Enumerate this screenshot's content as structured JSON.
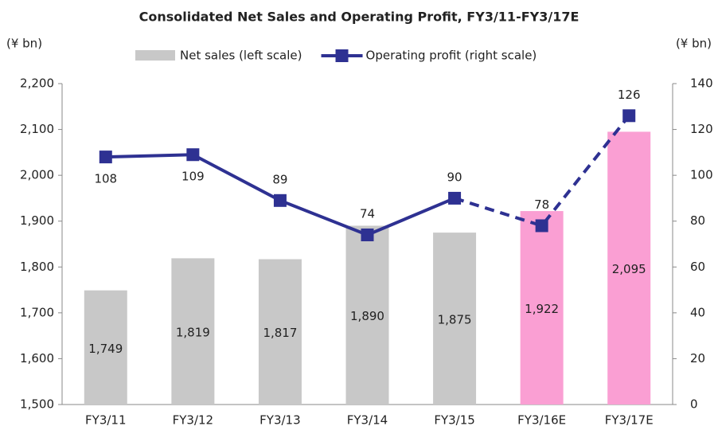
{
  "chart_data": {
    "type": "bar_line",
    "title": "Consolidated Net Sales and Operating Profit, FY3/11-FY3/17E",
    "y_label": "(¥ bn)",
    "y2_label": "(¥ bn)",
    "categories": [
      "FY3/11",
      "FY3/12",
      "FY3/13",
      "FY3/14",
      "FY3/15",
      "FY3/16E",
      "FY3/17E"
    ],
    "series": [
      {
        "name": "Net sales (left scale)",
        "type": "bar",
        "color": "#c8c8c8",
        "colors": [
          "#c8c8c8",
          "#c8c8c8",
          "#c8c8c8",
          "#c8c8c8",
          "#c8c8c8",
          "#fa9fd3",
          "#fa9fd3"
        ],
        "values": [
          1749,
          1819,
          1817,
          1890,
          1875,
          1922,
          2095
        ],
        "value_labels": [
          "1,749",
          "1,819",
          "1,817",
          "1,890",
          "1,875",
          "1,922",
          "2,095"
        ]
      },
      {
        "name": "Operating profit (right scale)",
        "type": "line",
        "axis": "y2",
        "color": "#2e3192",
        "dashed_from": 4,
        "values": [
          108,
          109,
          89,
          74,
          90,
          78,
          126
        ]
      }
    ],
    "ylim": [
      1500,
      2200
    ],
    "yticks": [
      {
        "value": 1500,
        "label": "1,500"
      },
      {
        "value": 1600,
        "label": "1,600"
      },
      {
        "value": 1700,
        "label": "1,700"
      },
      {
        "value": 1800,
        "label": "1,800"
      },
      {
        "value": 1900,
        "label": "1,900"
      },
      {
        "value": 2000,
        "label": "2,000"
      },
      {
        "value": 2100,
        "label": "2,100"
      },
      {
        "value": 2200,
        "label": "2,200"
      }
    ],
    "y2lim": [
      0,
      140
    ],
    "y2ticks": [
      0,
      20,
      40,
      60,
      80,
      100,
      120,
      140
    ],
    "grid": false
  }
}
